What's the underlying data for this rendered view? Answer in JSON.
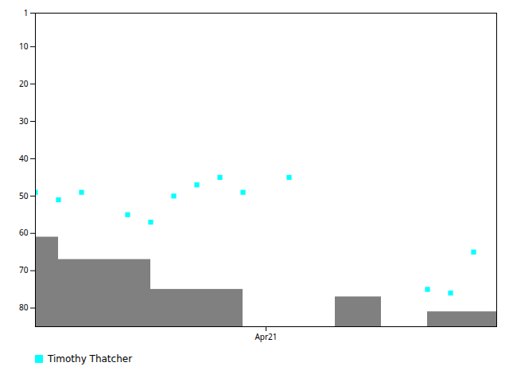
{
  "chart_data": {
    "type": "scatter",
    "x": [
      0,
      1,
      2,
      4,
      5,
      6,
      7,
      8,
      9,
      11,
      17,
      18,
      19
    ],
    "series": [
      {
        "name": "Timothy Thatcher",
        "color": "#00ffff",
        "marker": "square",
        "values": [
          49,
          51,
          49,
          55,
          57,
          50,
          47,
          45,
          49,
          45,
          75,
          76,
          65
        ]
      }
    ],
    "steps": {
      "lefts": [
        0,
        1,
        2,
        3,
        5,
        6,
        7,
        9,
        13,
        14,
        15,
        17,
        18
      ],
      "rights": [
        1,
        2,
        3,
        5,
        6,
        7,
        9,
        13,
        14,
        15,
        17,
        18,
        20
      ],
      "tops": [
        61,
        67,
        67,
        67,
        75,
        75,
        75,
        85,
        77,
        77,
        85,
        81,
        81
      ],
      "color": "#808080"
    },
    "xlim": [
      0,
      20
    ],
    "xticks": [
      {
        "value": 10,
        "label": "Apr21"
      }
    ],
    "ylim": [
      85,
      1
    ],
    "yticks": [
      1,
      10,
      20,
      30,
      40,
      50,
      60,
      70,
      80
    ],
    "grid": false,
    "legend": "lower left"
  }
}
